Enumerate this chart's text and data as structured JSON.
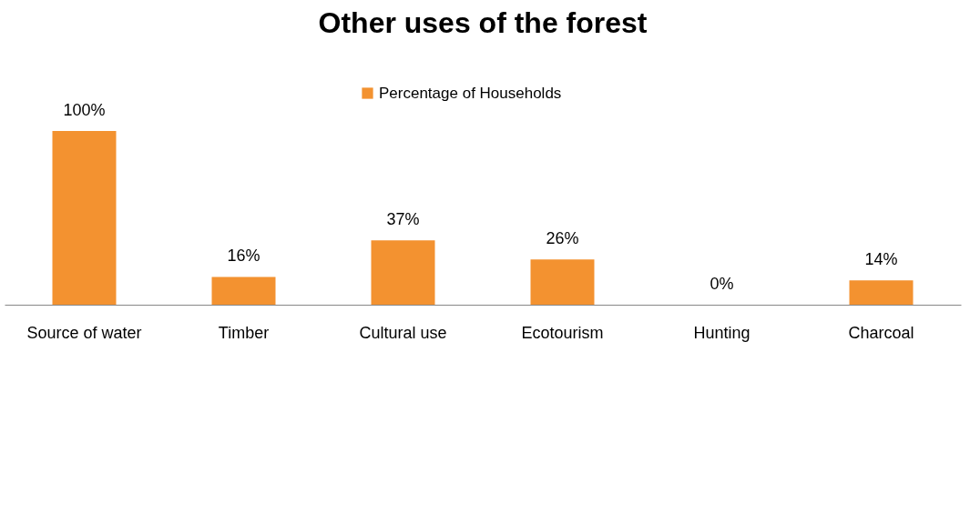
{
  "chart_data": {
    "type": "bar",
    "title": "Other uses of the forest",
    "categories": [
      "Source of water",
      "Timber",
      "Cultural use",
      "Ecotourism",
      "Hunting",
      "Charcoal"
    ],
    "series": [
      {
        "name": "Percentage of Households",
        "color": "#f39230",
        "values": [
          100,
          16,
          37,
          26,
          0,
          14
        ],
        "value_labels": [
          "100%",
          "16%",
          "37%",
          "26%",
          "0%",
          "14%"
        ]
      }
    ],
    "legend": "top",
    "grid": false
  }
}
